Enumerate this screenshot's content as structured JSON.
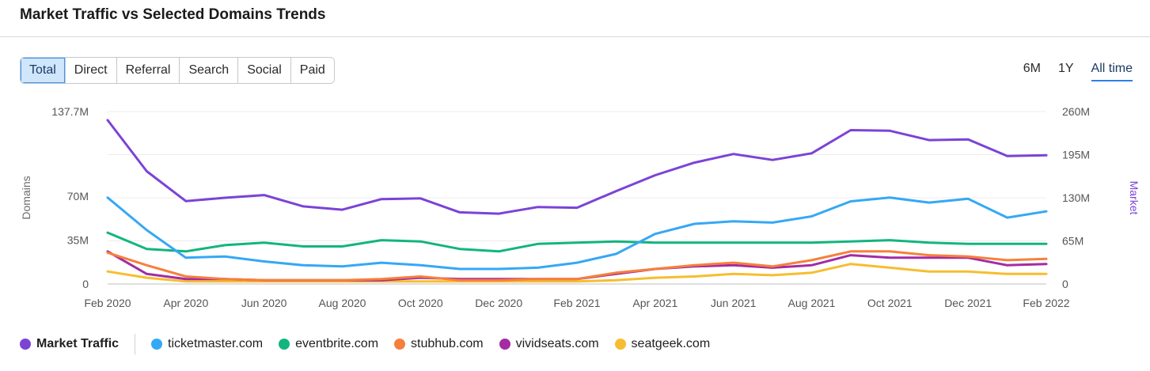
{
  "header": {
    "title": "Market Traffic vs Selected Domains Trends"
  },
  "tabs": [
    "Total",
    "Direct",
    "Referral",
    "Search",
    "Social",
    "Paid"
  ],
  "active_tab": "Total",
  "ranges": [
    "6M",
    "1Y",
    "All time"
  ],
  "active_range": "All time",
  "colors": {
    "market": "#7b43d6",
    "ticketmaster": "#35a8f5",
    "eventbrite": "#12b57e",
    "stubhub": "#f5803c",
    "vividseats": "#a42ba3",
    "seatgeek": "#f7bd30"
  },
  "chart_data": {
    "type": "line",
    "ylabel_left": "Domains",
    "ylabel_right": "Market",
    "left_ticks": [
      "137.7M",
      "70M",
      "35M",
      "0"
    ],
    "right_ticks": [
      "260M",
      "195M",
      "130M",
      "65M",
      "0"
    ],
    "ylim_left": [
      0,
      137.7
    ],
    "ylim_right": [
      0,
      260
    ],
    "x_tick_labels": [
      "Feb 2020",
      "Apr 2020",
      "Jun 2020",
      "Aug 2020",
      "Oct 2020",
      "Dec 2020",
      "Feb 2021",
      "Apr 2021",
      "Jun 2021",
      "Aug 2021",
      "Oct 2021",
      "Dec 2021",
      "Feb 2022"
    ],
    "x": [
      "Feb 2020",
      "Mar 2020",
      "Apr 2020",
      "May 2020",
      "Jun 2020",
      "Jul 2020",
      "Aug 2020",
      "Sep 2020",
      "Oct 2020",
      "Nov 2020",
      "Dec 2020",
      "Jan 2021",
      "Feb 2021",
      "Mar 2021",
      "Apr 2021",
      "May 2021",
      "Jun 2021",
      "Jul 2021",
      "Aug 2021",
      "Sep 2021",
      "Oct 2021",
      "Nov 2021",
      "Dec 2021",
      "Jan 2022",
      "Feb 2022"
    ],
    "series": [
      {
        "name": "Market Traffic",
        "axis": "right",
        "color_key": "market",
        "values": [
          247,
          170,
          125,
          130,
          134,
          117,
          112,
          128,
          129,
          108,
          106,
          116,
          115,
          140,
          164,
          183,
          196,
          187,
          197,
          232,
          231,
          217,
          218,
          193,
          194
        ]
      },
      {
        "name": "ticketmaster.com",
        "axis": "left",
        "color_key": "ticketmaster",
        "values": [
          69,
          43,
          21,
          22,
          18,
          15,
          14,
          17,
          15,
          12,
          12,
          13,
          17,
          24,
          40,
          48,
          50,
          49,
          54,
          66,
          69,
          65,
          68,
          53,
          58
        ]
      },
      {
        "name": "eventbrite.com",
        "axis": "left",
        "color_key": "eventbrite",
        "values": [
          41,
          28,
          26,
          31,
          33,
          30,
          30,
          35,
          34,
          28,
          26,
          32,
          33,
          34,
          33,
          33,
          33,
          33,
          33,
          34,
          35,
          33,
          32,
          32,
          32
        ]
      },
      {
        "name": "stubhub.com",
        "axis": "left",
        "color_key": "stubhub",
        "values": [
          25,
          15,
          6,
          4,
          3,
          3,
          3,
          4,
          6,
          3,
          3,
          4,
          4,
          9,
          12,
          15,
          17,
          14,
          19,
          26,
          26,
          23,
          22,
          19,
          20
        ]
      },
      {
        "name": "vividseats.com",
        "axis": "left",
        "color_key": "vividseats",
        "values": [
          26,
          8,
          4,
          4,
          3,
          3,
          3,
          3,
          5,
          4,
          4,
          4,
          4,
          8,
          12,
          14,
          15,
          13,
          15,
          23,
          21,
          21,
          21,
          15,
          16
        ]
      },
      {
        "name": "seatgeek.com",
        "axis": "left",
        "color_key": "seatgeek",
        "values": [
          10,
          5,
          2,
          2,
          2,
          2,
          2,
          2,
          2,
          2,
          2,
          2,
          2,
          3,
          5,
          6,
          8,
          7,
          9,
          16,
          13,
          10,
          10,
          8,
          8
        ]
      }
    ],
    "grid": true,
    "legend_position": "bottom"
  },
  "legend": [
    {
      "label": "Market Traffic",
      "color_key": "market"
    },
    {
      "label": "ticketmaster.com",
      "color_key": "ticketmaster"
    },
    {
      "label": "eventbrite.com",
      "color_key": "eventbrite"
    },
    {
      "label": "stubhub.com",
      "color_key": "stubhub"
    },
    {
      "label": "vividseats.com",
      "color_key": "vividseats"
    },
    {
      "label": "seatgeek.com",
      "color_key": "seatgeek"
    }
  ]
}
